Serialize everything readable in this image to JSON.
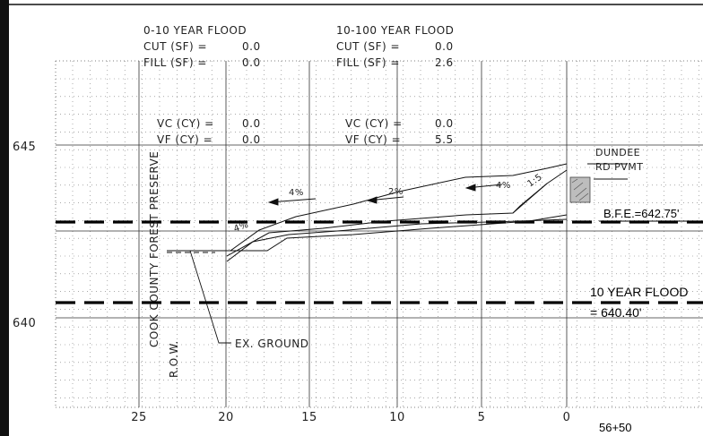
{
  "summary": {
    "left": {
      "title": "0-10 YEAR FLOOD",
      "cut_label": "CUT (SF) =",
      "cut_value": "0.0",
      "fill_label": "FILL (SF) =",
      "fill_value": "0.0",
      "vc_label": "VC (CY) =",
      "vc_value": "0.0",
      "vf_label": "VF (CY) =",
      "vf_value": "0.0"
    },
    "right": {
      "title": "10-100 YEAR FLOOD",
      "cut_label": "CUT (SF) =",
      "cut_value": "0.0",
      "fill_label": "FILL (SF) =",
      "fill_value": "2.6",
      "vc_label": "VC (CY) =",
      "vc_value": "0.0",
      "vf_label": "VF (CY) =",
      "vf_value": "5.5"
    }
  },
  "elevation_labels": [
    "645",
    "640"
  ],
  "offset_labels": [
    "25",
    "20",
    "15",
    "10",
    "5",
    "0"
  ],
  "station": "56+50",
  "labels": {
    "forest_preserve": "COOK COUNTY FOREST PRESERVE",
    "row": "R.O.W.",
    "ex_ground": "EX. GROUND",
    "dundee_line1": "DUNDEE",
    "dundee_line2": "RD PVMT",
    "bfe": "B.F.E.=642.75'",
    "flood10_line1": "10 YEAR FLOOD",
    "flood10_line2": "= 640.40'"
  },
  "slopes": [
    "4%",
    "2%",
    "4%",
    "1:5",
    "4%"
  ],
  "colors": {
    "line": "#111111",
    "grid": "#333333",
    "hatch": "#777777"
  }
}
